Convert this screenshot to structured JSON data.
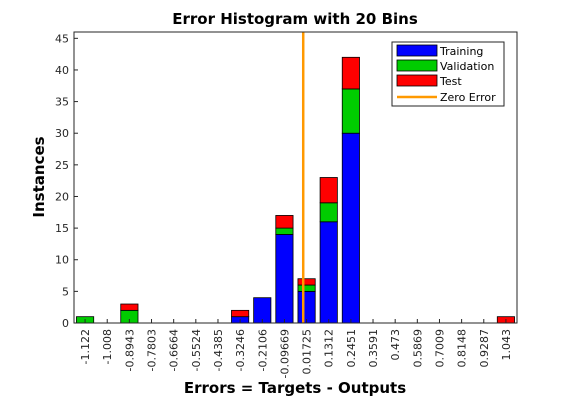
{
  "chart_data": {
    "type": "bar",
    "stacked": true,
    "title": "Error Histogram with 20 Bins",
    "xlabel": "Errors = Targets - Outputs",
    "ylabel": "Instances",
    "categories": [
      "-1.122",
      "-1.008",
      "-0.8943",
      "-0.7803",
      "-0.6664",
      "-0.5524",
      "-0.4385",
      "-0.3246",
      "-0.2106",
      "-0.09669",
      "0.01725",
      "0.1312",
      "0.2451",
      "0.3591",
      "0.473",
      "0.5869",
      "0.7009",
      "0.8148",
      "0.9287",
      "1.043"
    ],
    "series": [
      {
        "name": "Training",
        "color": "#0000ff",
        "values": [
          0,
          0,
          0,
          0,
          0,
          0,
          0,
          1,
          4,
          14,
          5,
          16,
          30,
          0,
          0,
          0,
          0,
          0,
          0,
          0
        ]
      },
      {
        "name": "Validation",
        "color": "#00cc00",
        "values": [
          1,
          0,
          2,
          0,
          0,
          0,
          0,
          0,
          0,
          1,
          1,
          3,
          7,
          0,
          0,
          0,
          0,
          0,
          0,
          0
        ]
      },
      {
        "name": "Test",
        "color": "#ff0000",
        "values": [
          0,
          0,
          1,
          0,
          0,
          0,
          0,
          1,
          0,
          2,
          1,
          4,
          5,
          0,
          0,
          0,
          0,
          0,
          0,
          1
        ]
      }
    ],
    "zero_error": {
      "name": "Zero Error",
      "color": "#ff9900",
      "x": 0
    },
    "ylim": [
      0,
      46
    ],
    "yticks": [
      0,
      5,
      10,
      15,
      20,
      25,
      30,
      35,
      40,
      45
    ],
    "legend_position": "top-right",
    "grid": false
  }
}
